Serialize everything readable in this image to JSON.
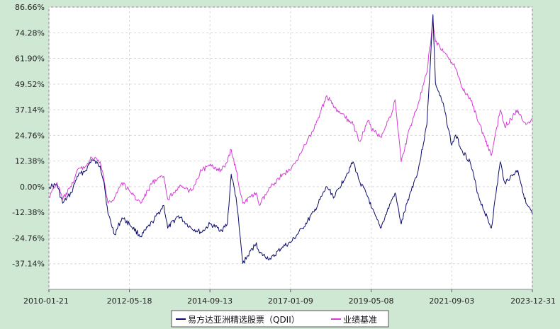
{
  "chart_data": {
    "type": "line",
    "title": "",
    "xlabel": "",
    "ylabel": "",
    "x_range": [
      "2010-01-21",
      "2023-12-31"
    ],
    "ylim": [
      -49.52,
      86.66
    ],
    "x_ticks": [
      "2010-01-21",
      "2012-05-18",
      "2014-09-13",
      "2017-01-09",
      "2019-05-08",
      "2021-09-03",
      "2023-12-31"
    ],
    "y_ticks": [
      "86.66%",
      "74.28%",
      "61.90%",
      "49.52%",
      "37.14%",
      "24.76%",
      "12.38%",
      "0.00%",
      "-12.38%",
      "-24.76%",
      "-37.14%"
    ],
    "y_tick_values": [
      86.66,
      74.28,
      61.9,
      49.52,
      37.14,
      24.76,
      12.38,
      0.0,
      -12.38,
      -24.76,
      -37.14
    ],
    "grid": true,
    "legend_position": "bottom-center",
    "series": [
      {
        "name": "易方达亚洲精选股票（QDII）",
        "color": "#0d0d6b",
        "points": [
          [
            "2010-01-21",
            0
          ],
          [
            "2010-04-15",
            1
          ],
          [
            "2010-06-15",
            -8
          ],
          [
            "2010-09-15",
            -3
          ],
          [
            "2010-11-15",
            5
          ],
          [
            "2011-02-15",
            8
          ],
          [
            "2011-04-15",
            13
          ],
          [
            "2011-07-15",
            10
          ],
          [
            "2011-08-25",
            2
          ],
          [
            "2011-10-05",
            -13
          ],
          [
            "2011-12-15",
            -23
          ],
          [
            "2012-03-01",
            -15
          ],
          [
            "2012-05-18",
            -18
          ],
          [
            "2012-09-15",
            -24
          ],
          [
            "2013-01-15",
            -17
          ],
          [
            "2013-05-15",
            -9
          ],
          [
            "2013-06-25",
            -20
          ],
          [
            "2013-10-15",
            -14
          ],
          [
            "2014-03-01",
            -20
          ],
          [
            "2014-06-15",
            -22
          ],
          [
            "2014-09-13",
            -18
          ],
          [
            "2015-01-15",
            -21
          ],
          [
            "2015-03-15",
            -18
          ],
          [
            "2015-04-25",
            6
          ],
          [
            "2015-06-15",
            -5
          ],
          [
            "2015-08-25",
            -37
          ],
          [
            "2016-01-15",
            -27
          ],
          [
            "2016-02-15",
            -32
          ],
          [
            "2016-06-15",
            -35
          ],
          [
            "2016-10-15",
            -29
          ],
          [
            "2017-01-09",
            -27
          ],
          [
            "2017-05-15",
            -20
          ],
          [
            "2017-09-15",
            -12
          ],
          [
            "2018-01-26",
            0
          ],
          [
            "2018-04-15",
            -5
          ],
          [
            "2018-10-30",
            12
          ],
          [
            "2019-01-03",
            3
          ],
          [
            "2019-04-15",
            -6
          ],
          [
            "2019-05-08",
            -10
          ],
          [
            "2019-08-15",
            -20
          ],
          [
            "2019-12-15",
            -6
          ],
          [
            "2020-01-15",
            -3
          ],
          [
            "2020-03-20",
            -18
          ],
          [
            "2020-06-15",
            -4
          ],
          [
            "2020-09-15",
            8
          ],
          [
            "2020-12-15",
            30
          ],
          [
            "2021-02-17",
            83
          ],
          [
            "2021-03-15",
            50
          ],
          [
            "2021-06-15",
            38
          ],
          [
            "2021-09-03",
            20
          ],
          [
            "2021-10-15",
            25
          ],
          [
            "2021-12-15",
            18
          ],
          [
            "2022-03-15",
            12
          ],
          [
            "2022-06-15",
            -5
          ],
          [
            "2022-10-25",
            -20
          ],
          [
            "2023-01-27",
            12
          ],
          [
            "2023-03-15",
            2
          ],
          [
            "2023-07-31",
            8
          ],
          [
            "2023-10-25",
            -8
          ],
          [
            "2023-12-31",
            -13
          ]
        ]
      },
      {
        "name": "业绩基准",
        "color": "#d63cd6",
        "points": [
          [
            "2010-01-21",
            -5
          ],
          [
            "2010-04-15",
            2
          ],
          [
            "2010-06-15",
            -6
          ],
          [
            "2010-09-15",
            0
          ],
          [
            "2010-11-15",
            8
          ],
          [
            "2011-02-15",
            10
          ],
          [
            "2011-04-15",
            14
          ],
          [
            "2011-07-15",
            12
          ],
          [
            "2011-08-25",
            3
          ],
          [
            "2011-10-05",
            -8
          ],
          [
            "2011-12-15",
            -5
          ],
          [
            "2012-03-01",
            2
          ],
          [
            "2012-05-18",
            -2
          ],
          [
            "2012-09-15",
            -8
          ],
          [
            "2013-01-15",
            2
          ],
          [
            "2013-05-15",
            5
          ],
          [
            "2013-06-25",
            -6
          ],
          [
            "2013-10-15",
            0
          ],
          [
            "2014-03-01",
            -2
          ],
          [
            "2014-06-15",
            8
          ],
          [
            "2014-09-13",
            10
          ],
          [
            "2015-01-15",
            8
          ],
          [
            "2015-03-15",
            12
          ],
          [
            "2015-04-25",
            18
          ],
          [
            "2015-06-15",
            8
          ],
          [
            "2015-08-25",
            -8
          ],
          [
            "2016-01-15",
            -3
          ],
          [
            "2016-02-15",
            -9
          ],
          [
            "2016-06-15",
            0
          ],
          [
            "2016-10-15",
            6
          ],
          [
            "2017-01-09",
            8
          ],
          [
            "2017-05-15",
            18
          ],
          [
            "2017-09-15",
            28
          ],
          [
            "2018-01-26",
            44
          ],
          [
            "2018-04-15",
            38
          ],
          [
            "2018-10-30",
            30
          ],
          [
            "2019-01-03",
            22
          ],
          [
            "2019-04-15",
            32
          ],
          [
            "2019-05-08",
            28
          ],
          [
            "2019-08-15",
            24
          ],
          [
            "2019-12-15",
            36
          ],
          [
            "2020-01-15",
            42
          ],
          [
            "2020-03-20",
            12
          ],
          [
            "2020-06-15",
            28
          ],
          [
            "2020-09-15",
            40
          ],
          [
            "2020-12-15",
            55
          ],
          [
            "2021-02-17",
            80
          ],
          [
            "2021-03-15",
            70
          ],
          [
            "2021-06-15",
            65
          ],
          [
            "2021-09-03",
            60
          ],
          [
            "2021-10-15",
            57
          ],
          [
            "2021-12-15",
            48
          ],
          [
            "2022-03-15",
            43
          ],
          [
            "2022-06-15",
            31
          ],
          [
            "2022-10-25",
            15
          ],
          [
            "2023-01-27",
            37
          ],
          [
            "2023-03-15",
            29
          ],
          [
            "2023-07-31",
            37
          ],
          [
            "2023-10-25",
            30
          ],
          [
            "2023-12-31",
            33
          ]
        ]
      }
    ]
  }
}
